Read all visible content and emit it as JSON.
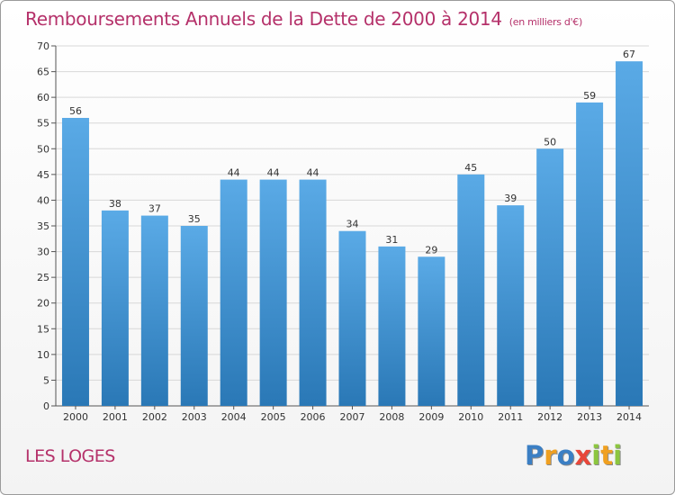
{
  "header": {
    "title": "Remboursements Annuels de la Dette de 2000 à 2014",
    "subtitle": "(en milliers d'€)"
  },
  "footer": {
    "location": "LES LOGES",
    "brand": "Proxiti"
  },
  "colors": {
    "title": "#b5316a",
    "bar_top": "#5aaae6",
    "bar_bottom": "#2a78b6",
    "grid": "#d8d8d8"
  },
  "chart_data": {
    "type": "bar",
    "title": "Remboursements Annuels de la Dette de 2000 à 2014",
    "subtitle": "(en milliers d'€)",
    "xlabel": "",
    "ylabel": "",
    "categories": [
      "2000",
      "2001",
      "2002",
      "2003",
      "2004",
      "2005",
      "2006",
      "2007",
      "2008",
      "2009",
      "2010",
      "2011",
      "2012",
      "2013",
      "2014"
    ],
    "values": [
      56,
      38,
      37,
      35,
      44,
      44,
      44,
      34,
      31,
      29,
      45,
      39,
      50,
      59,
      67
    ],
    "ylim": [
      0,
      70
    ],
    "yticks": [
      0,
      5,
      10,
      15,
      20,
      25,
      30,
      35,
      40,
      45,
      50,
      55,
      60,
      65,
      70
    ],
    "grid": true,
    "legend": "none"
  }
}
